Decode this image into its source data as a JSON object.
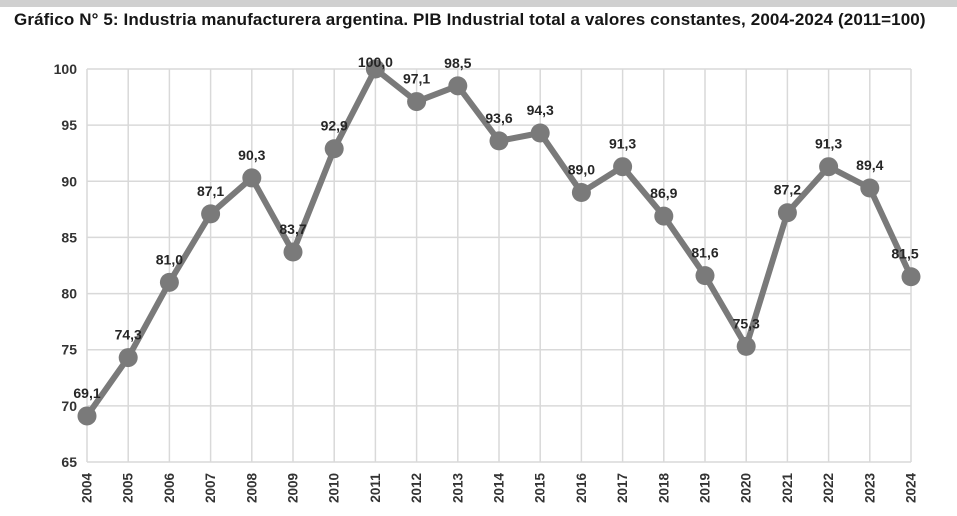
{
  "title": "Gráfico N° 5: Industria manufacturera argentina. PIB Industrial total a valores constantes, 2004-2024 (2011=100)",
  "colors": {
    "top_strip": "#d0d0d0",
    "series": "#7a7a7a",
    "gridline": "#d9d9d9",
    "data_label": "#262626",
    "axis_label": "#333333",
    "title": "#161616",
    "background": "#ffffff"
  },
  "chart_data": {
    "type": "line",
    "title": "Gráfico N° 5: Industria manufacturera argentina. PIB Industrial total a valores constantes, 2004-2024 (2011=100)",
    "categories": [
      "2004",
      "2005",
      "2006",
      "2007",
      "2008",
      "2009",
      "2010",
      "2011",
      "2012",
      "2013",
      "2014",
      "2015",
      "2016",
      "2017",
      "2018",
      "2019",
      "2020",
      "2021",
      "2022",
      "2023",
      "2024"
    ],
    "series": [
      {
        "name": "PIB Industrial total (2011=100)",
        "values": [
          69.1,
          74.3,
          81.0,
          87.1,
          90.3,
          83.7,
          92.9,
          100.0,
          97.1,
          98.5,
          93.6,
          94.3,
          89.0,
          91.3,
          86.9,
          81.6,
          75.3,
          87.2,
          91.3,
          89.4,
          81.5
        ]
      }
    ],
    "point_labels": [
      "69,1",
      "74,3",
      "81,0",
      "87,1",
      "90,3",
      "83,7",
      "92,9",
      "100,0",
      "97,1",
      "98,5",
      "93,6",
      "94,3",
      "89,0",
      "91,3",
      "86,9",
      "81,6",
      "75,3",
      "87,2",
      "91,3",
      "89,4",
      "81,5"
    ],
    "xlabel": "",
    "ylabel": "",
    "ylim": [
      65,
      100
    ],
    "yticks": [
      65,
      70,
      75,
      80,
      85,
      90,
      95,
      100
    ],
    "grid": true,
    "legend": false,
    "marker": "circle"
  }
}
